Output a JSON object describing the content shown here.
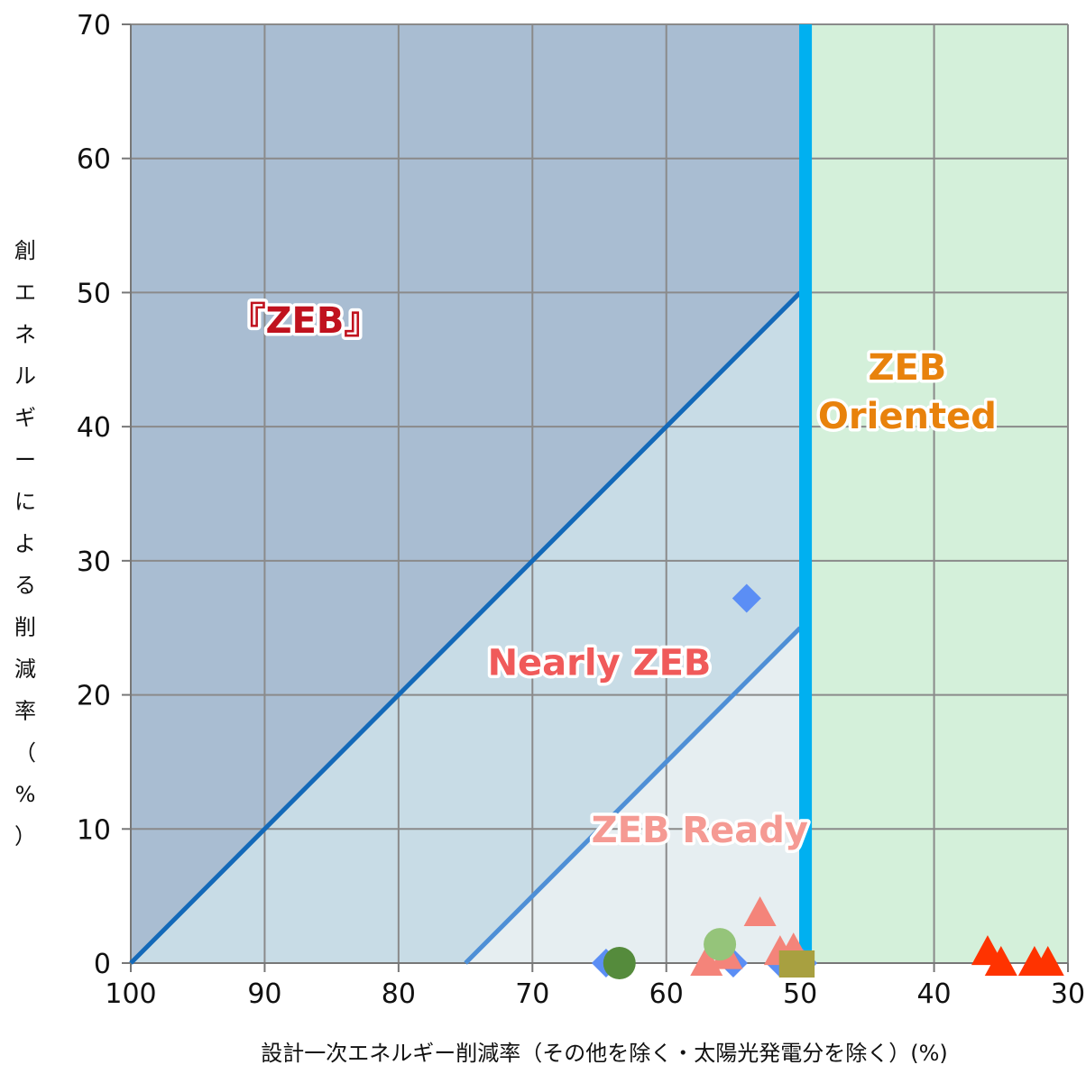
{
  "chart_data": {
    "type": "scatter",
    "xlabel": "設計一次エネルギー削減率（その他を除く・太陽光発電分を除く）(%)",
    "ylabel": "創エネルギーによる削減率（%）",
    "ylabel_chars": [
      "創",
      "エ",
      "ネ",
      "ル",
      "ギ",
      "ー",
      "に",
      "よ",
      "る",
      "削",
      "減",
      "率",
      "（",
      "%",
      "）"
    ],
    "xlim": [
      100,
      30
    ],
    "ylim": [
      0,
      70
    ],
    "x_reversed": true,
    "xticks": [
      100,
      90,
      80,
      70,
      60,
      50,
      40,
      30
    ],
    "yticks": [
      0,
      10,
      20,
      30,
      40,
      50,
      60,
      70
    ],
    "grid": true,
    "regions": [
      {
        "name": "zeb",
        "label": "『ZEB』",
        "color": "#c0121e",
        "fill": "#a9bdd2",
        "x": 87,
        "y": 47,
        "size": 40
      },
      {
        "name": "nearly-zeb",
        "label": "Nearly ZEB",
        "color": "#f05a5a",
        "fill": "#c8dce6",
        "x": 65,
        "y": 21.5,
        "size": 40
      },
      {
        "name": "zeb-ready",
        "label": "ZEB Ready",
        "color": "#f59a93",
        "fill": "#e6eef1",
        "x": 57.5,
        "y": 9,
        "size": 40
      },
      {
        "name": "zeb-oriented",
        "label": "ZEB Oriented",
        "label_lines": [
          "ZEB",
          "Oriented"
        ],
        "color": "#e8820c",
        "fill": "#d4f0da",
        "x": 42,
        "y": 43.5,
        "size": 40
      }
    ],
    "lines": [
      {
        "name": "zeb-boundary-line",
        "color": "#1469b8",
        "width": 5,
        "points": [
          [
            100,
            0
          ],
          [
            50,
            50
          ]
        ]
      },
      {
        "name": "nearly-zeb-boundary-line",
        "color": "#4e8fd6",
        "width": 5,
        "points": [
          [
            75,
            0
          ],
          [
            50,
            25
          ]
        ]
      },
      {
        "name": "fifty-percent-line",
        "color": "#00b0f0",
        "width": 14,
        "points": [
          [
            49.6,
            0
          ],
          [
            49.6,
            70
          ]
        ]
      }
    ],
    "series": [
      {
        "marker": "diamond",
        "color": "#5b8ef5",
        "points": [
          [
            54,
            27.2
          ],
          [
            64.5,
            0
          ],
          [
            55,
            0
          ],
          [
            51.5,
            0
          ],
          [
            50,
            0
          ],
          [
            49.8,
            0
          ]
        ]
      },
      {
        "marker": "triangle",
        "color": "#f4847a",
        "points": [
          [
            53,
            3.7
          ],
          [
            57,
            0
          ],
          [
            55.5,
            0.5
          ],
          [
            51.5,
            0.8
          ],
          [
            50.5,
            1
          ]
        ]
      },
      {
        "marker": "square",
        "color": "#a8a040",
        "points": [
          [
            50.5,
            0
          ],
          [
            50.0,
            0
          ]
        ]
      },
      {
        "marker": "circle",
        "color": "#558b3c",
        "points": [
          [
            63.5,
            0
          ]
        ]
      },
      {
        "marker": "circle",
        "color": "#95c47a",
        "points": [
          [
            56,
            1.4
          ]
        ]
      },
      {
        "marker": "triangle",
        "color": "#ff3300",
        "points": [
          [
            36,
            0.8
          ],
          [
            35,
            0
          ],
          [
            32.5,
            0
          ],
          [
            31.5,
            0
          ]
        ]
      }
    ]
  }
}
